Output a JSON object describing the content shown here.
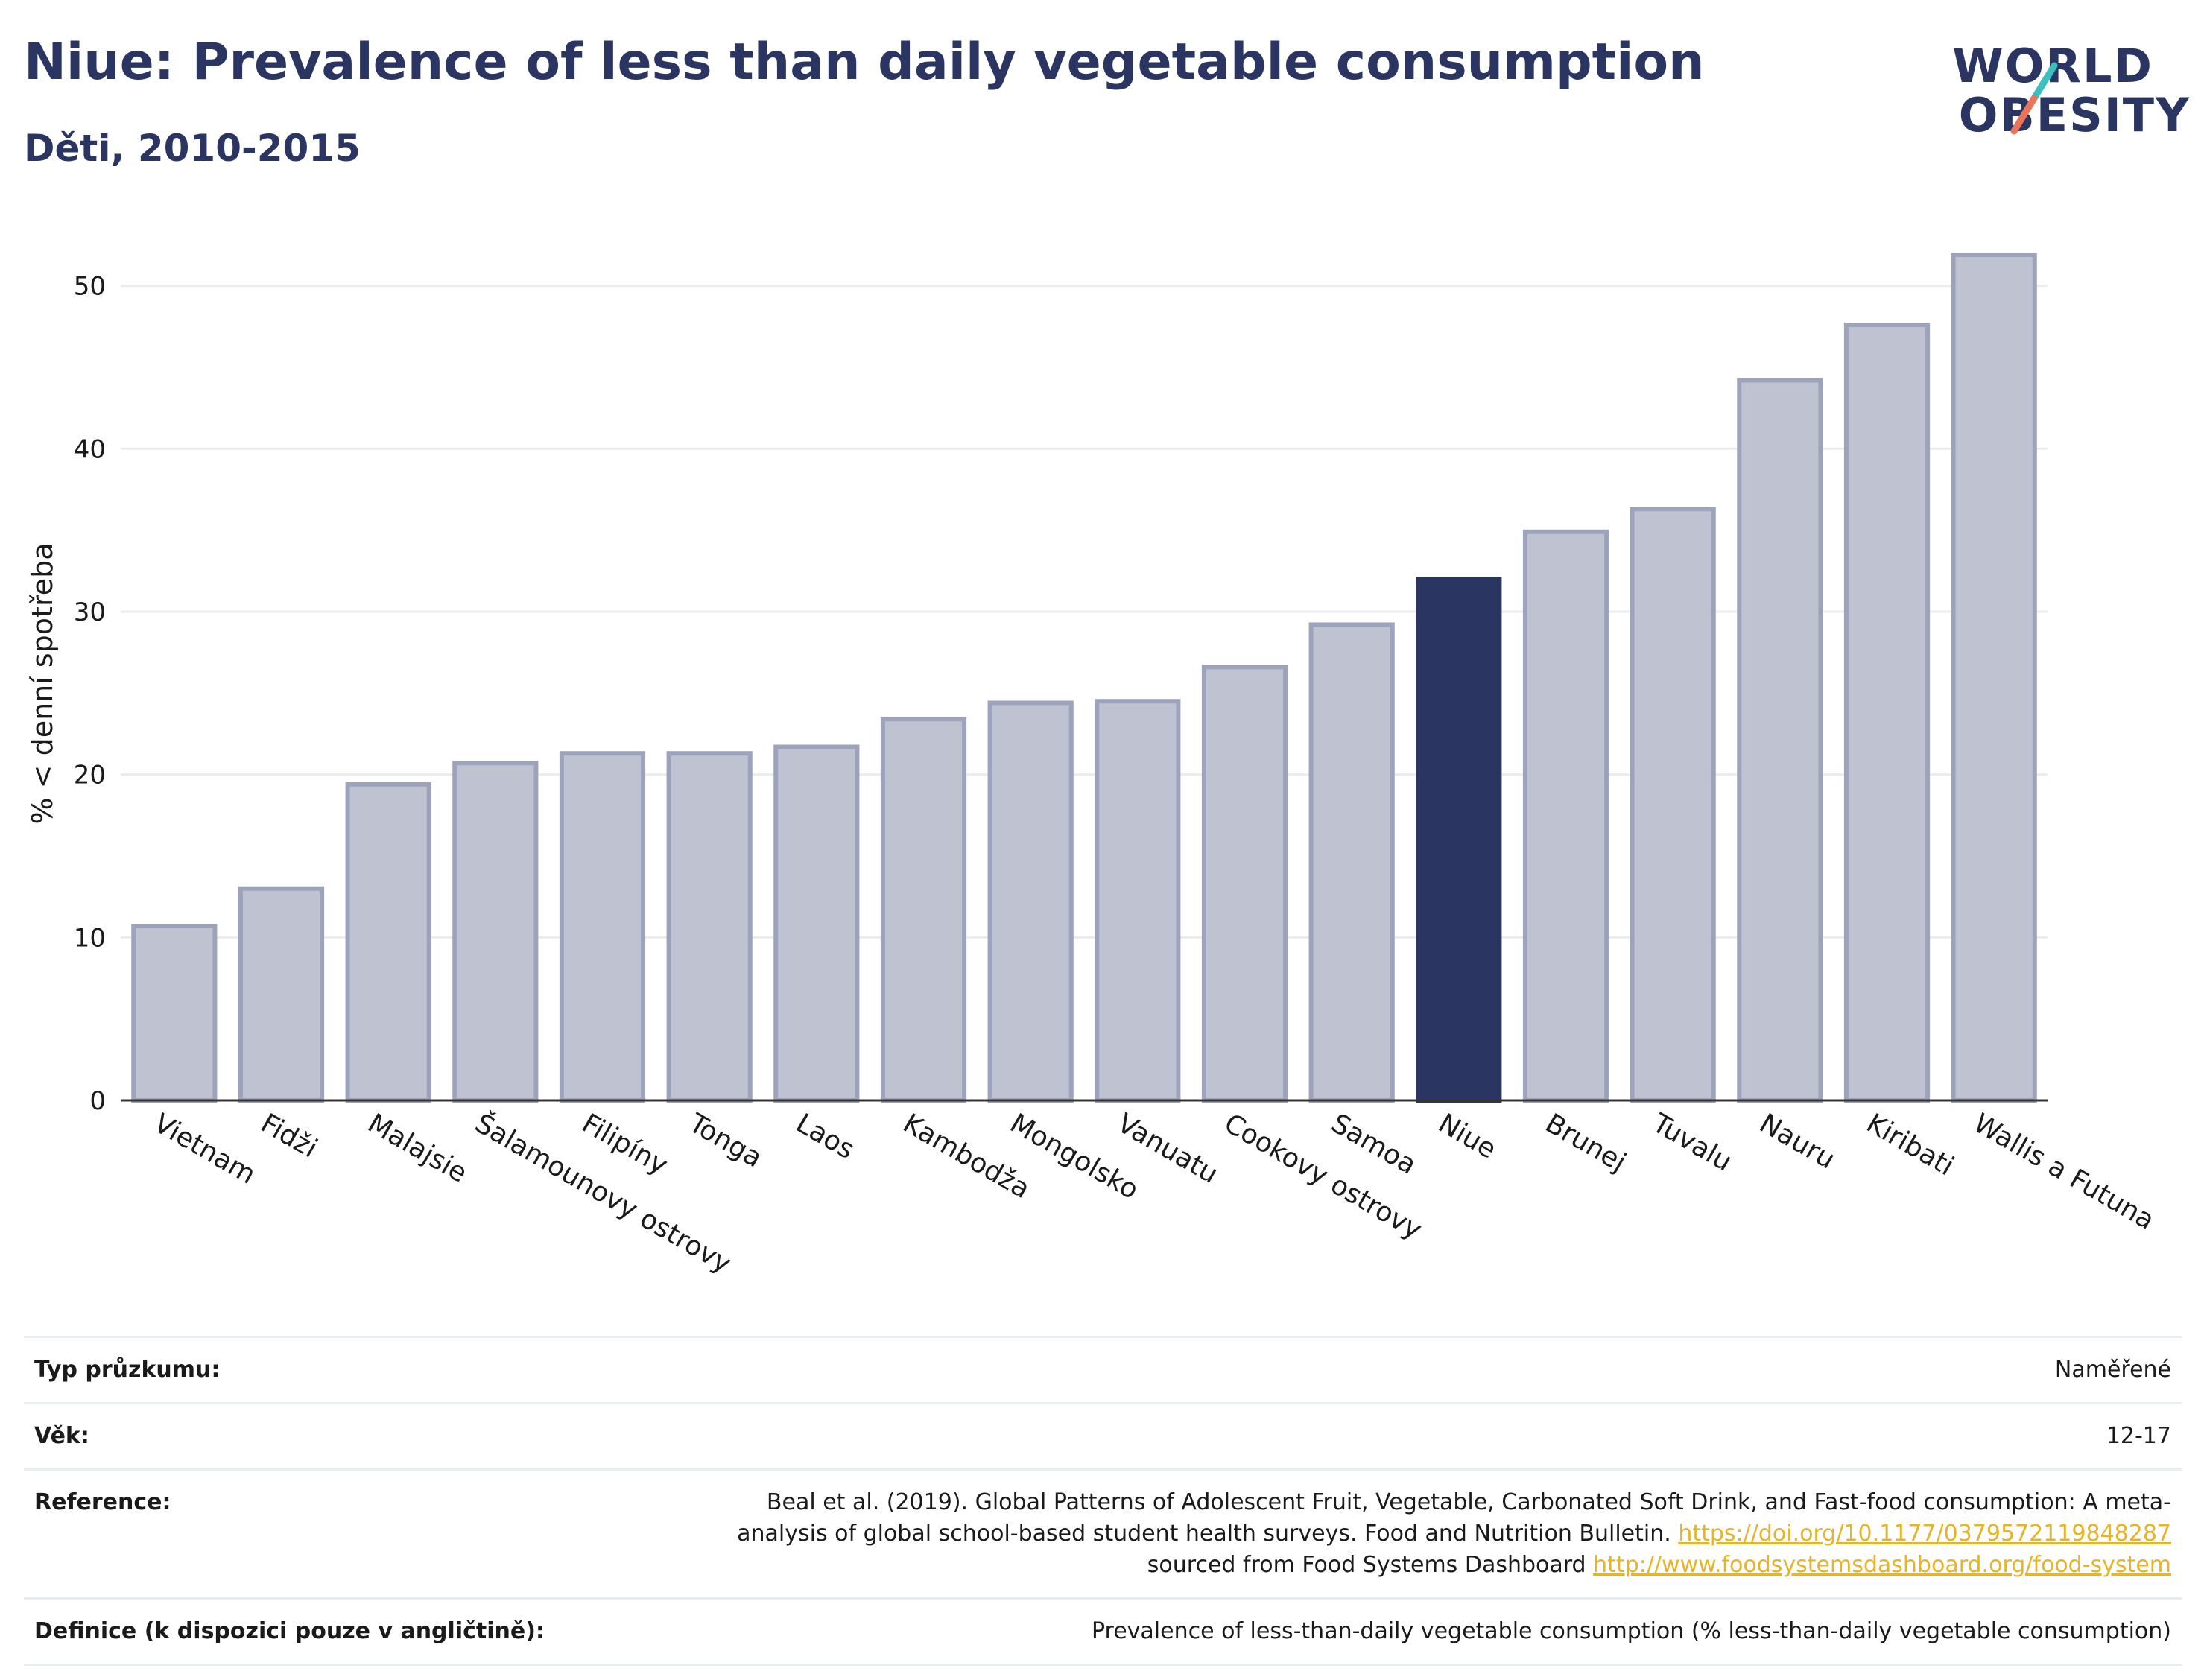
{
  "title": "Niue: Prevalence of less than daily vegetable consumption",
  "subtitle": "Děti, 2010-2015",
  "logo": {
    "line1": "WORLD",
    "line2": "OBESITY",
    "slash_color_top": "#3bbfbf",
    "slash_color_bottom": "#e8745a"
  },
  "colors": {
    "bar": "#bec2d1",
    "bar_border": "#9ea3bc",
    "highlight": "#2b3561",
    "grid": "#e9edf0"
  },
  "chart_data": {
    "type": "bar",
    "title": "",
    "xlabel": "",
    "ylabel": "% < denní spotřeba",
    "ylim": [
      0,
      53
    ],
    "yticks": [
      0,
      10,
      20,
      30,
      40,
      50
    ],
    "grid": true,
    "highlight": "Niue",
    "categories": [
      "Vietnam",
      "Fidži",
      "Malajsie",
      "Šalamounovy ostrovy",
      "Filipíny",
      "Tonga",
      "Laos",
      "Kambodža",
      "Mongolsko",
      "Vanuatu",
      "Cookovy ostrovy",
      "Samoa",
      "Niue",
      "Brunej",
      "Tuvalu",
      "Nauru",
      "Kiribati",
      "Wallis a Futuna"
    ],
    "values": [
      10.7,
      13.0,
      19.4,
      20.7,
      21.3,
      21.3,
      21.7,
      23.4,
      24.4,
      24.5,
      26.6,
      29.2,
      32.0,
      34.9,
      36.3,
      44.2,
      47.6,
      51.9
    ]
  },
  "info": [
    {
      "key": "Typ průzkumu:",
      "value": "Naměřené"
    },
    {
      "key": "Věk:",
      "value": "12-17"
    },
    {
      "key": "Reference:",
      "value_parts": {
        "text1": "Beal et al. (2019). Global Patterns of Adolescent Fruit, Vegetable, Carbonated Soft Drink, and Fast-food consumption: A meta-analysis of global school-based student health surveys. Food and Nutrition Bulletin.",
        "link1": "https://doi.org/10.1177/0379572119848287",
        "text2": "sourced from Food Systems Dashboard",
        "link2": "http://www.foodsystemsdashboard.org/food-system"
      }
    },
    {
      "key": "Definice (k dispozici pouze v angličtině):",
      "value": "Prevalence of less-than-daily vegetable consumption (% less-than-daily vegetable consumption)"
    }
  ]
}
